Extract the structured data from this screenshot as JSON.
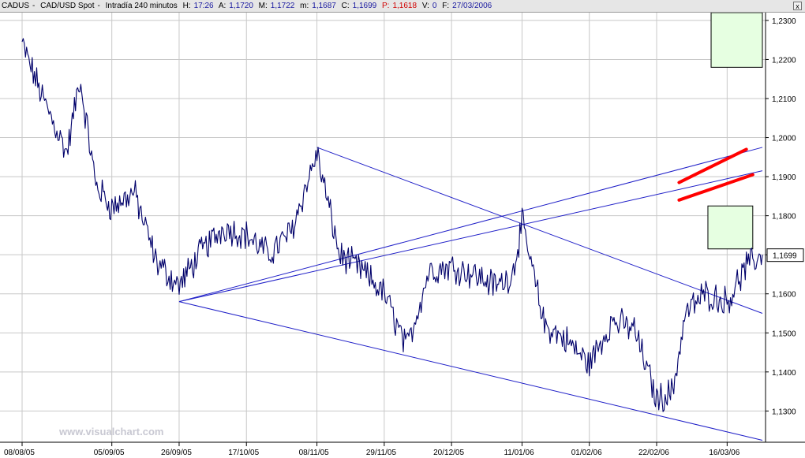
{
  "header": {
    "symbol": "CADUS",
    "description": "CAD/USD Spot",
    "interval": "Intradía 240 minutos",
    "h_label": "H:",
    "h_value": "17:26",
    "a_label": "A:",
    "a_value": "1,1720",
    "m_label": "M:",
    "m_value": "1,1722",
    "mn_label": "m:",
    "mn_value": "1,1687",
    "c_label": "C:",
    "c_value": "1,1699",
    "p_label": "P:",
    "p_value": "1,1618",
    "v_label": "V:",
    "v_value": "0",
    "f_label": "F:",
    "f_value": "27/03/2006",
    "close_label": "x"
  },
  "watermark": "www.visualchart.com",
  "colors": {
    "price": "#00006a",
    "trendline": "#2020c8",
    "projection": "#ff0000",
    "box_fill": "#e6ffe1",
    "box_border": "#000000",
    "grid": "#c8c8c8",
    "last_price_bg": "#ffffff"
  },
  "chart_data": {
    "type": "line",
    "title": "CADUS - CAD/USD Spot - Intradía 240 minutos",
    "xlabel": "",
    "ylabel": "",
    "x_ticks": [
      "08/08/05",
      "05/09/05",
      "26/09/05",
      "17/10/05",
      "08/11/05",
      "29/11/05",
      "20/12/05",
      "11/01/06",
      "01/02/06",
      "22/02/06",
      "16/03/06"
    ],
    "y_ticks": [
      "1,1300",
      "1,1400",
      "1,1500",
      "1,1600",
      "1,1700",
      "1,1800",
      "1,1900",
      "1,2000",
      "1,2100",
      "1,2200",
      "1,2300"
    ],
    "ylim": [
      1.122,
      1.232
    ],
    "last_price": "1,1699",
    "grid": true,
    "series": [
      {
        "points": [
          [
            "08/08/05",
            1.224
          ],
          [
            "15/08/05",
            1.209
          ],
          [
            "22/08/05",
            1.196
          ],
          [
            "26/08/05",
            1.215
          ],
          [
            "31/08/05",
            1.188
          ],
          [
            "05/09/05",
            1.182
          ],
          [
            "12/09/05",
            1.186
          ],
          [
            "19/09/05",
            1.168
          ],
          [
            "26/09/05",
            1.162
          ],
          [
            "03/10/05",
            1.171
          ],
          [
            "10/10/05",
            1.177
          ],
          [
            "17/10/05",
            1.175
          ],
          [
            "24/10/05",
            1.17
          ],
          [
            "31/10/05",
            1.176
          ],
          [
            "08/11/05",
            1.196
          ],
          [
            "15/11/05",
            1.17
          ],
          [
            "22/11/05",
            1.166
          ],
          [
            "29/11/05",
            1.16
          ],
          [
            "06/12/05",
            1.146
          ],
          [
            "13/12/05",
            1.166
          ],
          [
            "20/12/05",
            1.167
          ],
          [
            "27/12/05",
            1.165
          ],
          [
            "03/01/06",
            1.162
          ],
          [
            "08/01/06",
            1.165
          ],
          [
            "11/01/06",
            1.178
          ],
          [
            "18/01/06",
            1.152
          ],
          [
            "25/01/06",
            1.148
          ],
          [
            "01/02/06",
            1.142
          ],
          [
            "08/02/06",
            1.153
          ],
          [
            "15/02/06",
            1.151
          ],
          [
            "22/02/06",
            1.133
          ],
          [
            "27/02/06",
            1.135
          ],
          [
            "03/03/06",
            1.155
          ],
          [
            "09/03/06",
            1.16
          ],
          [
            "16/03/06",
            1.158
          ],
          [
            "22/03/06",
            1.167
          ],
          [
            "27/03/06",
            1.17
          ]
        ]
      }
    ],
    "trendlines": [
      {
        "from": [
          "26/09/05",
          1.158
        ],
        "to": [
          "27/03/06",
          1.1225
        ]
      },
      {
        "from": [
          "08/11/05",
          1.1975
        ],
        "to": [
          "27/03/06",
          1.155
        ]
      },
      {
        "from": [
          "26/09/05",
          1.158
        ],
        "to": [
          "27/03/06",
          1.1915
        ]
      },
      {
        "from": [
          "26/09/05",
          1.158
        ],
        "to": [
          "27/03/06",
          1.1975
        ]
      }
    ],
    "projections": [
      {
        "from": [
          "01/03/06",
          1.1885
        ],
        "to": [
          "22/03/06",
          1.197
        ]
      },
      {
        "from": [
          "01/03/06",
          1.184
        ],
        "to": [
          "24/03/06",
          1.1905
        ]
      }
    ],
    "zones": [
      {
        "x": [
          "11/03/06",
          "27/03/06"
        ],
        "y": [
          1.218,
          1.232
        ]
      },
      {
        "x": [
          "10/03/06",
          "24/03/06"
        ],
        "y": [
          1.1715,
          1.1825
        ]
      }
    ]
  }
}
